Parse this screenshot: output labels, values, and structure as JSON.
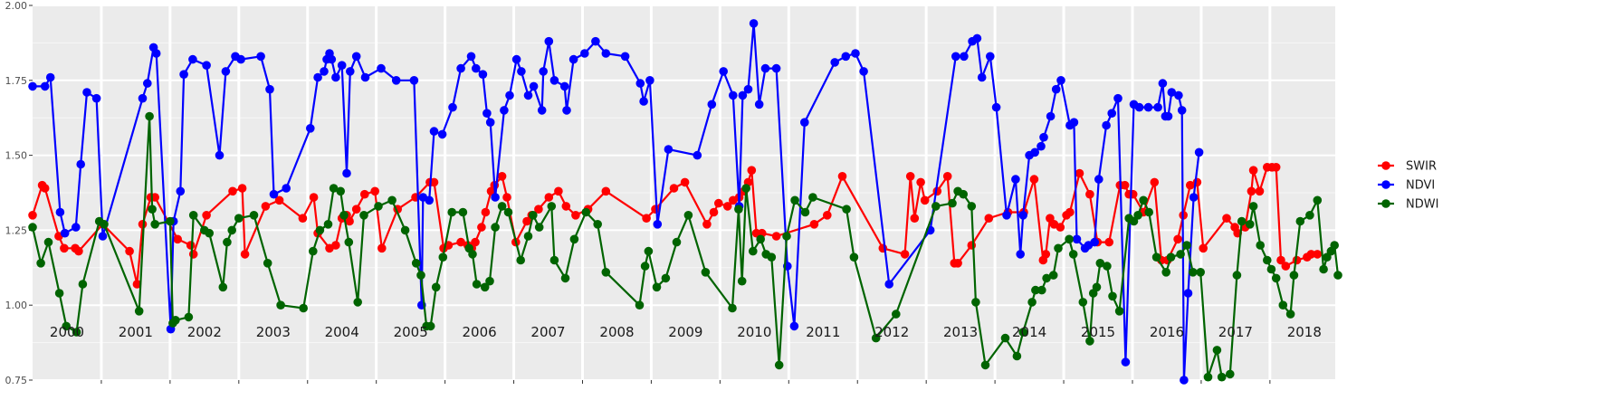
{
  "chart_data": {
    "type": "line",
    "title": "",
    "xlabel": "",
    "ylabel": "",
    "x_range": [
      2000.0,
      2018.95
    ],
    "ylim": [
      0.75,
      2.0
    ],
    "y_ticks": [
      "0.75",
      "1.00",
      "1.25",
      "1.50",
      "1.75",
      "2.00"
    ],
    "y_tick_values": [
      0.75,
      1.0,
      1.25,
      1.5,
      1.75,
      2.0
    ],
    "years": [
      "2000",
      "2001",
      "2002",
      "2003",
      "2004",
      "2005",
      "2006",
      "2007",
      "2008",
      "2009",
      "2010",
      "2011",
      "2012",
      "2013",
      "2014",
      "2015",
      "2016",
      "2017",
      "2018"
    ],
    "grid": true,
    "legend": "right",
    "series": [
      {
        "name": "SWIR",
        "color": "#ff0000",
        "x": [
          2000.0,
          2000.14,
          2000.18,
          2000.38,
          2000.46,
          2000.62,
          2000.67,
          2001.02,
          2001.41,
          2001.52,
          2001.6,
          2001.72,
          2001.78,
          2002.11,
          2002.3,
          2002.34,
          2002.53,
          2002.91,
          2003.05,
          2003.09,
          2003.39,
          2003.59,
          2003.93,
          2004.09,
          2004.15,
          2004.32,
          2004.41,
          2004.5,
          2004.57,
          2004.61,
          2004.71,
          2004.83,
          2004.98,
          2005.08,
          2005.31,
          2005.57,
          2005.78,
          2005.84,
          2005.98,
          2006.05,
          2006.23,
          2006.33,
          2006.39,
          2006.44,
          2006.53,
          2006.59,
          2006.67,
          2006.72,
          2006.83,
          2006.9,
          2007.03,
          2007.19,
          2007.26,
          2007.36,
          2007.51,
          2007.65,
          2007.76,
          2007.9,
          2008.08,
          2008.34,
          2008.93,
          2009.06,
          2009.33,
          2009.49,
          2009.81,
          2009.91,
          2009.98,
          2010.11,
          2010.19,
          2010.28,
          2010.35,
          2010.41,
          2010.46,
          2010.53,
          2010.61,
          2010.82,
          2011.37,
          2011.56,
          2011.78,
          2012.37,
          2012.69,
          2012.77,
          2012.83,
          2012.92,
          2012.98,
          2013.16,
          2013.31,
          2013.41,
          2013.46,
          2013.66,
          2013.91,
          2014.19,
          2014.42,
          2014.57,
          2014.7,
          2014.74,
          2014.8,
          2014.86,
          2014.95,
          2015.04,
          2015.09,
          2015.23,
          2015.38,
          2015.49,
          2015.66,
          2015.82,
          2015.89,
          2015.95,
          2016.01,
          2016.16,
          2016.32,
          2016.42,
          2016.51,
          2016.66,
          2016.74,
          2016.84,
          2016.94,
          2017.03,
          2017.37,
          2017.49,
          2017.53,
          2017.64,
          2017.73,
          2017.76,
          2017.85,
          2017.96,
          2018.03,
          2018.09,
          2018.16,
          2018.23,
          2018.39,
          2018.54,
          2018.6,
          2018.69,
          2018.79,
          2018.85
        ]
      },
      {
        "name": "NDVI",
        "color": "#0000ff",
        "x": [
          2000.0,
          2000.18,
          2000.26,
          2000.4,
          2000.47,
          2000.63,
          2000.7,
          2000.79,
          2000.93,
          2001.02,
          2001.6,
          2001.67,
          2001.76,
          2001.8,
          2002.01,
          2002.05,
          2002.15,
          2002.2,
          2002.33,
          2002.53,
          2002.72,
          2002.81,
          2002.95,
          2003.03,
          2003.32,
          2003.45,
          2003.51,
          2003.69,
          2004.04,
          2004.15,
          2004.24,
          2004.28,
          2004.32,
          2004.35,
          2004.41,
          2004.5,
          2004.57,
          2004.62,
          2004.71,
          2004.84,
          2005.07,
          2005.29,
          2005.55,
          2005.66,
          2005.68,
          2005.77,
          2005.84,
          2005.96,
          2006.11,
          2006.23,
          2006.38,
          2006.45,
          2006.55,
          2006.61,
          2006.66,
          2006.73,
          2006.86,
          2006.94,
          2007.04,
          2007.11,
          2007.21,
          2007.29,
          2007.41,
          2007.43,
          2007.51,
          2007.59,
          2007.74,
          2007.77,
          2007.87,
          2008.03,
          2008.19,
          2008.34,
          2008.62,
          2008.84,
          2008.89,
          2008.98,
          2009.09,
          2009.25,
          2009.67,
          2009.88,
          2010.05,
          2010.19,
          2010.28,
          2010.33,
          2010.41,
          2010.49,
          2010.57,
          2010.66,
          2010.82,
          2010.98,
          2011.08,
          2011.23,
          2011.67,
          2011.83,
          2011.97,
          2012.09,
          2012.46,
          2013.06,
          2013.43,
          2013.55,
          2013.67,
          2013.74,
          2013.81,
          2013.93,
          2014.02,
          2014.17,
          2014.3,
          2014.37,
          2014.41,
          2014.5,
          2014.58,
          2014.67,
          2014.71,
          2014.81,
          2014.89,
          2014.96,
          2015.09,
          2015.15,
          2015.19,
          2015.31,
          2015.36,
          2015.45,
          2015.51,
          2015.62,
          2015.7,
          2015.79,
          2015.9,
          2016.02,
          2016.1,
          2016.23,
          2016.37,
          2016.44,
          2016.48,
          2016.52,
          2016.57,
          2016.67,
          2016.72,
          2016.75,
          2016.81,
          2016.89,
          2016.97,
          2017.12,
          2017.18,
          2017.34,
          2017.68,
          2017.72,
          2017.8,
          2017.86,
          2017.93,
          2017.99,
          2018.04,
          2018.09,
          2018.13,
          2018.2,
          2018.24,
          2018.43,
          2018.48,
          2018.53,
          2018.56,
          2018.61,
          2018.71,
          2018.83,
          2018.92,
          2019.01
        ]
      },
      {
        "name": "NDWI",
        "color": "#006400",
        "x": [
          2000.0,
          2000.12,
          2000.23,
          2000.39,
          2000.49,
          2000.64,
          2000.73,
          2000.97,
          2001.04,
          2001.55,
          2001.7,
          2001.74,
          2001.78,
          2002.0,
          2002.04,
          2002.08,
          2002.27,
          2002.34,
          2002.5,
          2002.57,
          2002.77,
          2002.83,
          2002.9,
          2003.0,
          2003.22,
          2003.42,
          2003.61,
          2003.94,
          2004.08,
          2004.18,
          2004.3,
          2004.38,
          2004.48,
          2004.53,
          2004.6,
          2004.73,
          2004.82,
          2005.03,
          2005.23,
          2005.42,
          2005.58,
          2005.65,
          2005.73,
          2005.79,
          2005.87,
          2005.97,
          2006.1,
          2006.26,
          2006.35,
          2006.4,
          2006.46,
          2006.58,
          2006.65,
          2006.73,
          2006.83,
          2006.92,
          2007.1,
          2007.21,
          2007.28,
          2007.37,
          2007.55,
          2007.59,
          2007.75,
          2007.88,
          2008.05,
          2008.22,
          2008.34,
          2008.83,
          2008.91,
          2008.96,
          2009.08,
          2009.21,
          2009.37,
          2009.54,
          2009.79,
          2010.18,
          2010.27,
          2010.32,
          2010.38,
          2010.48,
          2010.59,
          2010.67,
          2010.75,
          2010.86,
          2010.97,
          2011.09,
          2011.24,
          2011.35,
          2011.84,
          2011.95,
          2012.27,
          2012.56,
          2013.14,
          2013.38,
          2013.46,
          2013.54,
          2013.66,
          2013.72,
          2013.86,
          2014.15,
          2014.32,
          2014.41,
          2014.54,
          2014.59,
          2014.68,
          2014.75,
          2014.85,
          2014.92,
          2015.08,
          2015.14,
          2015.28,
          2015.38,
          2015.43,
          2015.48,
          2015.53,
          2015.63,
          2015.71,
          2015.81,
          2015.95,
          2016.02,
          2016.08,
          2016.16,
          2016.24,
          2016.35,
          2016.49,
          2016.56,
          2016.7,
          2016.79,
          2016.88,
          2016.99,
          2017.1,
          2017.23,
          2017.3,
          2017.42,
          2017.52,
          2017.59,
          2017.71,
          2017.76,
          2017.86,
          2017.96,
          2018.02,
          2018.09,
          2018.19,
          2018.3,
          2018.35,
          2018.44,
          2018.58,
          2018.69,
          2018.78,
          2018.83,
          2018.89,
          2018.94,
          2018.99
        ]
      }
    ]
  }
}
